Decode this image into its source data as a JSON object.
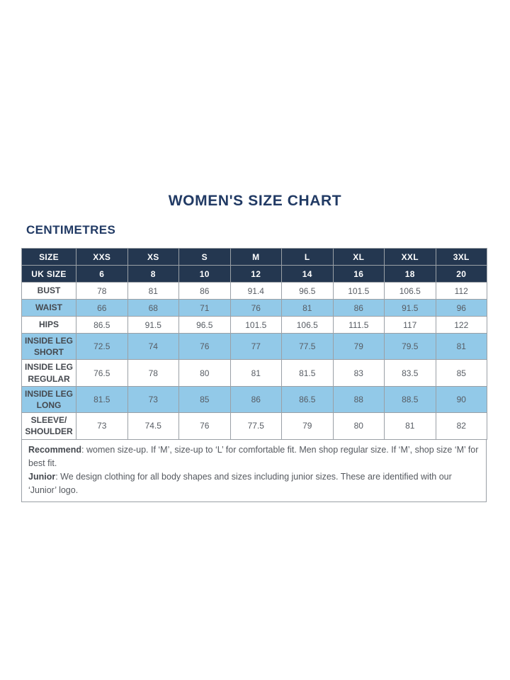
{
  "page": {
    "title": "WOMEN'S SIZE CHART",
    "unit_label": "CENTIMETRES"
  },
  "colors": {
    "navy_header_bg": "#243750",
    "navy_text": "#213a64",
    "row_shaded_blue": "#92c9e8",
    "row_white": "#ffffff",
    "grid_border": "#9aa0a6",
    "cell_text": "#575c63",
    "label_text": "#45494f"
  },
  "table": {
    "size_row": {
      "label": "SIZE",
      "values": [
        "XXS",
        "XS",
        "S",
        "M",
        "L",
        "XL",
        "XXL",
        "3XL"
      ]
    },
    "uk_size_row": {
      "label": "UK SIZE",
      "values": [
        "6",
        "8",
        "10",
        "12",
        "14",
        "16",
        "18",
        "20"
      ]
    },
    "rows": [
      {
        "label": "BUST",
        "shaded": false,
        "values": [
          "78",
          "81",
          "86",
          "91.4",
          "96.5",
          "101.5",
          "106.5",
          "112"
        ]
      },
      {
        "label": "WAIST",
        "shaded": true,
        "values": [
          "66",
          "68",
          "71",
          "76",
          "81",
          "86",
          "91.5",
          "96"
        ]
      },
      {
        "label": "HIPS",
        "shaded": false,
        "values": [
          "86.5",
          "91.5",
          "96.5",
          "101.5",
          "106.5",
          "111.5",
          "117",
          "122"
        ]
      },
      {
        "label": "INSIDE LEG\nSHORT",
        "shaded": true,
        "values": [
          "72.5",
          "74",
          "76",
          "77",
          "77.5",
          "79",
          "79.5",
          "81"
        ]
      },
      {
        "label": "INSIDE LEG\nREGULAR",
        "shaded": false,
        "values": [
          "76.5",
          "78",
          "80",
          "81",
          "81.5",
          "83",
          "83.5",
          "85"
        ]
      },
      {
        "label": "INSIDE LEG\nLONG",
        "shaded": true,
        "values": [
          "81.5",
          "73",
          "85",
          "86",
          "86.5",
          "88",
          "88.5",
          "90"
        ]
      },
      {
        "label": "SLEEVE/\nSHOULDER",
        "shaded": false,
        "values": [
          "73",
          "74.5",
          "76",
          "77.5",
          "79",
          "80",
          "81",
          "82"
        ]
      }
    ]
  },
  "footer": {
    "recommend_label": "Recommend",
    "recommend_text": ": women size-up. If ‘M’, size-up to ‘L’ for comfortable fit. Men shop regular size. If ‘M’, shop size ‘M’ for best fit.",
    "junior_label": "Junior",
    "junior_text": ": We design clothing for all body shapes and sizes including junior sizes. These are identified with our ‘Junior’ logo."
  }
}
